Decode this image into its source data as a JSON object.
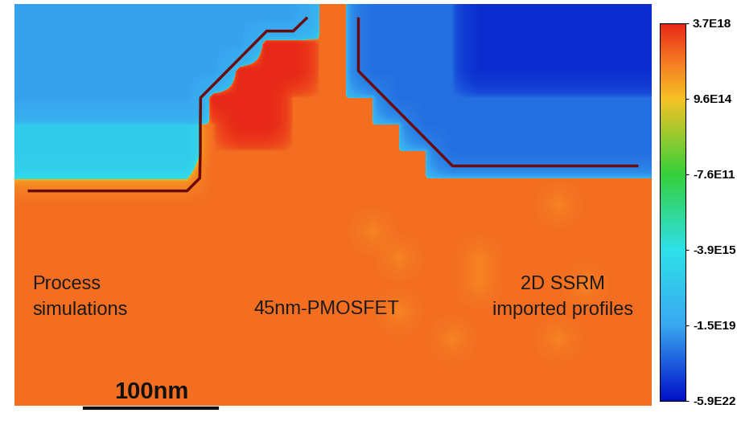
{
  "chart_data": {
    "type": "heatmap",
    "annotations": [
      "Process\nsimulations",
      "45nm-PMOSFET",
      "2D SSRM\nimported profiles",
      "100nm"
    ],
    "tick_labels": false,
    "color_range": [
      -5.9e+22,
      3.7e+18
    ],
    "color_ticks": [
      {
        "value": 3.7e+18,
        "label": "3.7E18"
      },
      {
        "value": 960000000000000.0,
        "label": "9.6E14"
      },
      {
        "value": -760000000000.0,
        "label": "-7.6E11"
      },
      {
        "value": -3900000000000000.0,
        "label": "-3.9E15"
      },
      {
        "value": -1.5e+19,
        "label": "-1.5E19"
      },
      {
        "value": -5.9e+22,
        "label": "-5.9E22"
      }
    ],
    "cells": [
      [
        -2e+19,
        -2e+19,
        -2e+19,
        -2e+19,
        -2e+19,
        -2e+19,
        -2e+19,
        -2e+19,
        -2e+19,
        -2e+19,
        -2e+19,
        1e+17,
        1e+17,
        -3e+20,
        -3e+20,
        -3e+20,
        -3e+20,
        -1e+22,
        -1e+22,
        -1e+22,
        -1e+22,
        -1e+22,
        -1e+22,
        -1e+22
      ],
      [
        -2e+19,
        -2e+19,
        -2e+19,
        -2e+19,
        -2e+19,
        -2e+19,
        -2e+19,
        -2e+19,
        -2e+19,
        3.7e+18,
        3.7e+18,
        1e+17,
        1e+17,
        -3e+20,
        -3e+20,
        -3e+20,
        -3e+20,
        -1e+22,
        -1e+22,
        -1e+22,
        -1e+22,
        -1e+22,
        -1e+22,
        -1e+22
      ],
      [
        -2e+19,
        -2e+19,
        -2e+19,
        -2e+19,
        -2e+19,
        -2e+19,
        -2e+19,
        -2e+19,
        3.7e+18,
        3.7e+18,
        3.7e+18,
        1e+17,
        1e+17,
        -3e+20,
        -3e+20,
        -3e+20,
        -3e+20,
        -1e+22,
        -1e+22,
        -1e+22,
        -1e+22,
        -1e+22,
        -1e+22,
        -1e+22
      ],
      [
        -2e+19,
        -2e+19,
        -2e+19,
        -2e+19,
        -2e+19,
        -2e+19,
        -2e+19,
        3.7e+18,
        3.7e+18,
        3.7e+18,
        1e+17,
        1e+17,
        1e+17,
        1e+17,
        -3e+20,
        -3e+20,
        -3e+20,
        -3e+20,
        -3e+20,
        -3e+20,
        -3e+20,
        -3e+20,
        -3e+20,
        -3e+20
      ],
      [
        -1e+17,
        -1e+17,
        -1e+17,
        -1e+17,
        -1e+17,
        -1e+17,
        -1e+17,
        1e+17,
        3.7e+18,
        3.7e+18,
        1e+17,
        1e+17,
        1e+17,
        1e+17,
        1e+17,
        -3e+20,
        -3e+20,
        -3e+20,
        -3e+20,
        -3e+20,
        -3e+20,
        -3e+20,
        -3e+20,
        -3e+20
      ],
      [
        -1e+17,
        -1e+17,
        -1e+17,
        -1e+17,
        -1e+17,
        -1e+17,
        -1e+17,
        1e+17,
        1e+17,
        1e+17,
        1e+17,
        1e+17,
        1e+17,
        1e+17,
        1e+17,
        1e+17,
        -3e+20,
        -3e+20,
        -3e+20,
        -3e+20,
        -3e+20,
        -3e+20,
        -3e+20,
        -3e+20
      ],
      [
        -4000000000000000.0,
        -4000000000000000.0,
        -4000000000000000.0,
        -4000000000000000.0,
        -4000000000000000.0,
        -4000000000000000.0,
        -4000000000000000.0,
        1e+17,
        1e+17,
        1e+17,
        1e+17,
        1e+17,
        1e+17,
        1e+17,
        1e+17,
        1e+17,
        1e+17,
        1e+17,
        1e+17,
        1e+17,
        1e+17,
        1e+17,
        1e+17,
        1e+17
      ],
      [
        1e+17,
        1e+17,
        1e+17,
        1e+17,
        1e+17,
        1e+17,
        1e+17,
        1e+17,
        1e+17,
        1e+17,
        1e+17,
        1e+17,
        1e+17,
        1e+17,
        1e+17,
        1e+17,
        1e+17,
        1e+17,
        1e+17,
        1e+17,
        3e+16,
        1e+17,
        1e+17,
        1e+17
      ],
      [
        1e+17,
        1e+17,
        1e+17,
        1e+17,
        1e+17,
        1e+17,
        1e+17,
        1e+17,
        1e+17,
        1e+17,
        1e+17,
        1e+17,
        1e+17,
        3e+16,
        1e+17,
        1e+17,
        1e+17,
        1e+17,
        1e+17,
        1e+17,
        1e+17,
        1e+17,
        1e+17,
        1e+17
      ],
      [
        1e+17,
        1e+17,
        1e+17,
        1e+17,
        1e+17,
        1e+17,
        1e+17,
        1e+17,
        1e+17,
        1e+17,
        1e+17,
        1e+17,
        1e+17,
        1e+17,
        3e+16,
        1e+17,
        1e+17,
        3e+16,
        1e+17,
        1e+17,
        1e+17,
        1e+17,
        1e+17,
        1e+17
      ],
      [
        1e+17,
        1e+17,
        1e+17,
        1e+17,
        1e+17,
        1e+17,
        1e+17,
        1e+17,
        1e+17,
        1e+17,
        1e+17,
        1e+17,
        1e+17,
        1e+17,
        1e+17,
        1e+17,
        1e+17,
        3e+16,
        1e+17,
        1e+17,
        1e+17,
        3e+16,
        1e+17,
        1e+17
      ],
      [
        1e+17,
        1e+17,
        1e+17,
        1e+17,
        1e+17,
        1e+17,
        1e+17,
        1e+17,
        1e+17,
        1e+17,
        1e+17,
        1e+17,
        1e+17,
        1e+17,
        3e+16,
        1e+17,
        1e+17,
        1e+17,
        1e+17,
        1e+17,
        1e+17,
        1e+17,
        1e+17,
        1e+17
      ],
      [
        1e+17,
        1e+17,
        1e+17,
        1e+17,
        1e+17,
        1e+17,
        1e+17,
        1e+17,
        1e+17,
        1e+17,
        1e+17,
        1e+17,
        1e+17,
        1e+17,
        1e+17,
        1e+17,
        3e+16,
        1e+17,
        1e+17,
        1e+17,
        3e+16,
        1e+17,
        1e+17,
        1e+17
      ],
      [
        1e+17,
        1e+17,
        1e+17,
        1e+17,
        1e+17,
        1e+17,
        1e+17,
        1e+17,
        1e+17,
        1e+17,
        1e+17,
        1e+17,
        1e+17,
        1e+17,
        1e+17,
        1e+17,
        1e+17,
        1e+17,
        1e+17,
        1e+17,
        1e+17,
        1e+17,
        1e+17,
        1e+17
      ],
      [
        1e+17,
        1e+17,
        1e+17,
        1e+17,
        1e+17,
        1e+17,
        1e+17,
        1e+17,
        1e+17,
        1e+17,
        1e+17,
        1e+17,
        1e+17,
        1e+17,
        1e+17,
        1e+17,
        1e+17,
        1e+17,
        1e+17,
        1e+17,
        1e+17,
        1e+17,
        1e+17,
        1e+17
      ]
    ]
  }
}
